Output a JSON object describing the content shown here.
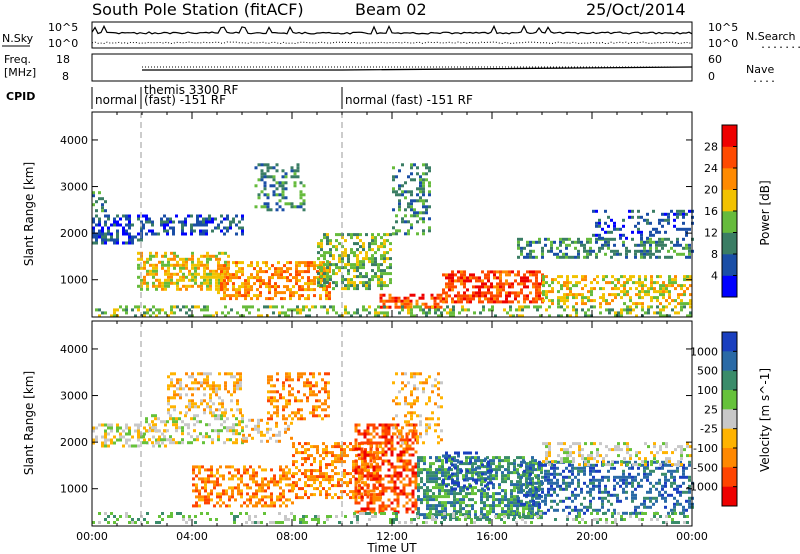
{
  "header": {
    "station": "South Pole Station (fitACF)",
    "beam": "Beam 02",
    "date": "25/Oct/2014"
  },
  "panels": {
    "nsky": {
      "left_label": "N.Sky",
      "left_ticks": [
        "10^5",
        "10^0"
      ],
      "right_ticks": [
        "10^5",
        "10^0"
      ],
      "right_label": "N.Search",
      "right_key": "........"
    },
    "freq": {
      "left_label_1": "Freq.",
      "left_label_2": "[MHz]",
      "left_ticks": [
        "18",
        "8"
      ],
      "right_ticks": [
        "60",
        "0"
      ],
      "right_label": "Nave",
      "right_key": "...."
    },
    "cpid": {
      "label": "CPID",
      "segments": [
        {
          "text_1": "normal",
          "text_2": ""
        },
        {
          "text_1": "themis 3300 RF",
          "text_2": "(fast) -151 RF"
        },
        {
          "text_1": "normal (fast) -151 RF",
          "text_2": ""
        }
      ]
    }
  },
  "chart_data": [
    {
      "type": "heatmap",
      "name": "power",
      "ylabel": "Slant Range [km]",
      "yticks": [
        "1000",
        "2000",
        "3000",
        "4000"
      ],
      "ylim": [
        200,
        4600
      ],
      "xlim_hours": [
        0,
        24
      ],
      "colorbar": {
        "label": "Power [dB]",
        "ticks": [
          "4",
          "8",
          "12",
          "16",
          "20",
          "24",
          "28"
        ],
        "colors": [
          "#0000ff",
          "#1a4ea6",
          "#3a7d64",
          "#66bb3c",
          "#f2c200",
          "#ff8a00",
          "#ff4a00",
          "#ee0000"
        ]
      }
    },
    {
      "type": "heatmap",
      "name": "velocity",
      "ylabel": "Slant Range [km]",
      "yticks": [
        "1000",
        "2000",
        "3000",
        "4000"
      ],
      "ylim": [
        200,
        4600
      ],
      "xlim_hours": [
        0,
        24
      ],
      "xlabel": "Time UT",
      "xticks": [
        "00:00",
        "04:00",
        "08:00",
        "12:00",
        "16:00",
        "20:00",
        "00:00"
      ],
      "colorbar": {
        "label": "Velocity [m s^-1]",
        "ticks": [
          "1000",
          "500",
          "100",
          "25",
          "-25",
          "-100",
          "-500",
          "-1000"
        ],
        "colors": [
          "#1a3fbf",
          "#2a6aa6",
          "#3a8c6a",
          "#66c23a",
          "#c8c8c8",
          "#ffb300",
          "#ff8800",
          "#ff4400",
          "#ee0000"
        ]
      }
    }
  ]
}
